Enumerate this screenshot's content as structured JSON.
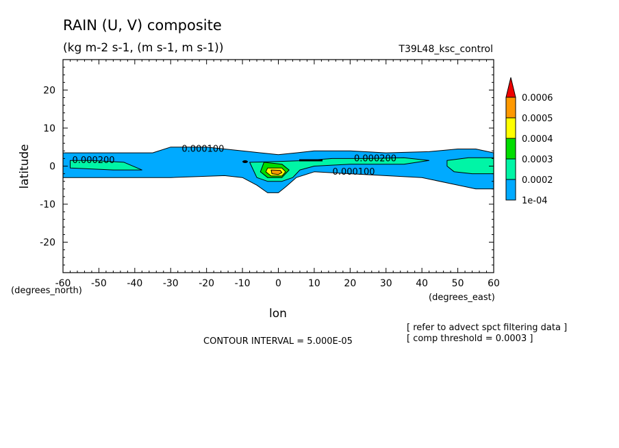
{
  "header": {
    "title": "RAIN (U, V) composite",
    "subtitle": "(kg m-2 s-1, (m s-1, m s-1))",
    "run_label": "T39L48_ksc_control"
  },
  "footer": {
    "contour_interval": "CONTOUR INTERVAL = 5.000E-05",
    "note_1": "[ refer to advect spct filtering data ]",
    "note_2": "[ comp threshold = 0.0003 ]"
  },
  "chart_data": {
    "type": "heatmap",
    "title": "RAIN (U, V) composite",
    "xlabel": "lon",
    "ylabel": "latitude",
    "x_unit_label": "(degrees_east)",
    "y_unit_label": "(degrees_north)",
    "xlim": [
      -60,
      60
    ],
    "ylim": [
      -28,
      28
    ],
    "x_ticks": [
      -60,
      -50,
      -40,
      -30,
      -20,
      -10,
      0,
      10,
      20,
      30,
      40,
      50,
      60
    ],
    "y_ticks": [
      -20,
      -10,
      0,
      10,
      20
    ],
    "contour_labels": [
      {
        "text": "0.000100",
        "x": -21,
        "y": 4.5
      },
      {
        "text": "0.000200",
        "x": -51.5,
        "y": 1.5
      },
      {
        "text": "0.000200",
        "x": 27,
        "y": 2.0
      },
      {
        "text": "0.000100",
        "x": 21,
        "y": -1.5
      }
    ],
    "colorbar": {
      "labels": [
        "0.0006",
        "0.0005",
        "0.0004",
        "0.0003",
        "0.0002",
        "1e-04"
      ],
      "levels": [
        {
          "min": 0.0001,
          "max": 0.0002,
          "color": "#00aaff"
        },
        {
          "min": 0.0002,
          "max": 0.0003,
          "color": "#00f5a6"
        },
        {
          "min": 0.0003,
          "max": 0.0004,
          "color": "#00dd00"
        },
        {
          "min": 0.0004,
          "max": 0.0005,
          "color": "#ffff00"
        },
        {
          "min": 0.0005,
          "max": 0.0006,
          "color": "#ff9900"
        },
        {
          "min": 0.0006,
          "max": null,
          "color": "#ee0000"
        }
      ]
    },
    "regions": [
      {
        "level": 0.0001,
        "polygon": [
          [
            -60,
            3.5
          ],
          [
            -35,
            3.5
          ],
          [
            -30,
            5
          ],
          [
            -20,
            5
          ],
          [
            -15,
            4.5
          ],
          [
            -8,
            3.8
          ],
          [
            0,
            3
          ],
          [
            5,
            3.5
          ],
          [
            10,
            4
          ],
          [
            20,
            4
          ],
          [
            30,
            3.5
          ],
          [
            42,
            3.8
          ],
          [
            50,
            4.5
          ],
          [
            55,
            4.5
          ],
          [
            60,
            3.5
          ],
          [
            60,
            -6
          ],
          [
            55,
            -6
          ],
          [
            50,
            -5
          ],
          [
            40,
            -3
          ],
          [
            20,
            -2
          ],
          [
            10,
            -1.5
          ],
          [
            5,
            -3
          ],
          [
            2,
            -5.5
          ],
          [
            0,
            -7
          ],
          [
            -3,
            -7
          ],
          [
            -6,
            -5
          ],
          [
            -10,
            -3
          ],
          [
            -15,
            -2.5
          ],
          [
            -30,
            -3
          ],
          [
            -60,
            -3
          ]
        ]
      },
      {
        "level": 0.0002,
        "polygon": [
          [
            -58,
            1.5
          ],
          [
            -52,
            1.5
          ],
          [
            -43,
            1
          ],
          [
            -38,
            -1
          ],
          [
            -46,
            -1
          ],
          [
            -58,
            -0.5
          ]
        ]
      },
      {
        "level": 0.0002,
        "polygon": [
          [
            -8,
            1
          ],
          [
            0,
            1.2
          ],
          [
            8,
            1.5
          ],
          [
            15,
            2
          ],
          [
            25,
            2
          ],
          [
            35,
            2.2
          ],
          [
            42,
            1.5
          ],
          [
            35,
            0.5
          ],
          [
            20,
            0.5
          ],
          [
            10,
            0
          ],
          [
            6,
            -1
          ],
          [
            4,
            -3
          ],
          [
            1,
            -4
          ],
          [
            -3,
            -4
          ],
          [
            -6,
            -3
          ]
        ]
      },
      {
        "level": 0.0002,
        "polygon": [
          [
            47,
            1.5
          ],
          [
            53,
            2.2
          ],
          [
            60,
            2.2
          ],
          [
            60,
            -2
          ],
          [
            54,
            -2
          ],
          [
            49,
            -1.5
          ],
          [
            47,
            0
          ]
        ]
      },
      {
        "level": 0.0003,
        "polygon": [
          [
            -4,
            1
          ],
          [
            1,
            0.5
          ],
          [
            3,
            -1
          ],
          [
            1,
            -3
          ],
          [
            -3,
            -3
          ],
          [
            -5,
            -1.5
          ]
        ]
      },
      {
        "level": 0.0004,
        "polygon": [
          [
            -3,
            -0.5
          ],
          [
            1,
            -0.5
          ],
          [
            2,
            -1.5
          ],
          [
            1,
            -2.6
          ],
          [
            -2,
            -2.6
          ],
          [
            -3.5,
            -1.5
          ]
        ]
      },
      {
        "level": 0.0005,
        "polygon": [
          [
            -2,
            -1
          ],
          [
            0.5,
            -1.1
          ],
          [
            1,
            -1.7
          ],
          [
            0,
            -2.2
          ],
          [
            -1.8,
            -2
          ]
        ]
      }
    ]
  }
}
